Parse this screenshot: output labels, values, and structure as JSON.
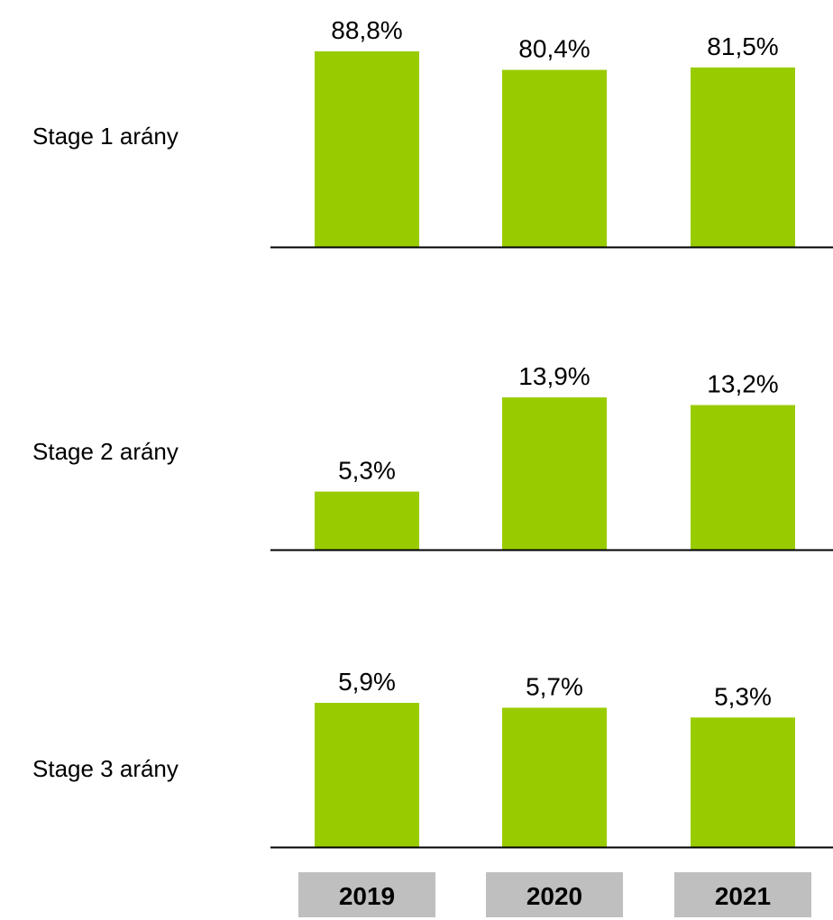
{
  "chart_data": {
    "type": "bar",
    "categories": [
      "2019",
      "2020",
      "2021"
    ],
    "bar_color": "#99CC00",
    "category_box_color": "#BFBFBF",
    "axis_color": "#000000",
    "panels": [
      {
        "label": "Stage 1 arány",
        "values": [
          88.8,
          80.4,
          81.5
        ],
        "value_labels": [
          "88,8%",
          "80,4%",
          "81,5%"
        ],
        "ylim": [
          0,
          88.8
        ]
      },
      {
        "label": "Stage 2 arány",
        "values": [
          5.3,
          13.9,
          13.2
        ],
        "value_labels": [
          "5,3%",
          "13,9%",
          "13,2%"
        ],
        "ylim": [
          0,
          13.9
        ]
      },
      {
        "label": "Stage 3 arány",
        "values": [
          5.9,
          5.7,
          5.3
        ],
        "value_labels": [
          "5,9%",
          "5,7%",
          "5,3%"
        ],
        "ylim": [
          0,
          5.9
        ]
      }
    ]
  }
}
